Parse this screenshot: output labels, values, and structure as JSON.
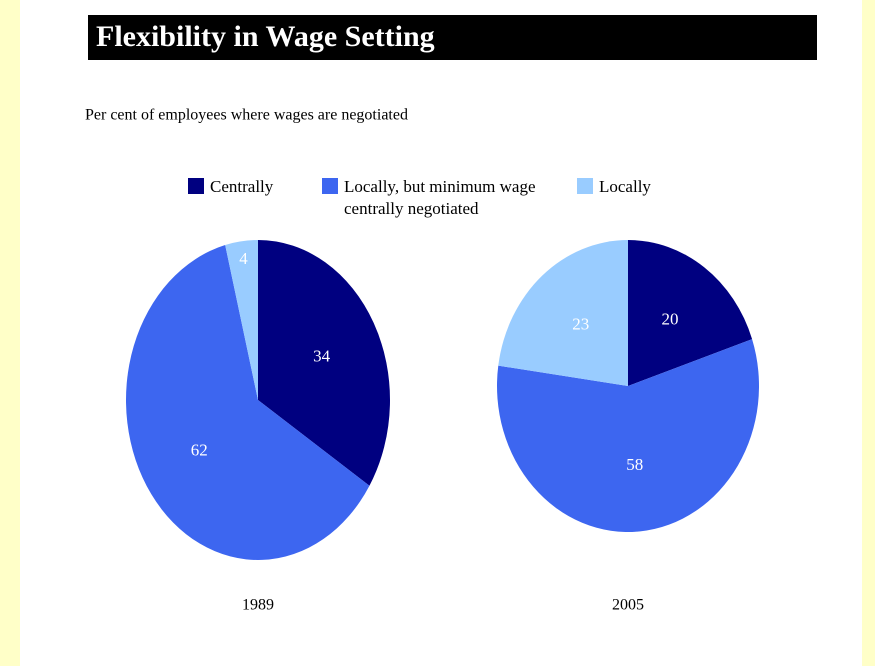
{
  "chart_data": {
    "type": "pie",
    "title": "Flexibility in Wage Setting",
    "subtitle": "Per cent of employees where wages are negotiated",
    "categories": [
      "Centrally",
      "Locally, but minimum wage centrally negotiated",
      "Locally"
    ],
    "colors": [
      "#000080",
      "#3d66f0",
      "#99ccff"
    ],
    "series": [
      {
        "name": "1989",
        "values": [
          34,
          62,
          4
        ]
      },
      {
        "name": "2005",
        "values": [
          20,
          58,
          23
        ]
      }
    ]
  }
}
